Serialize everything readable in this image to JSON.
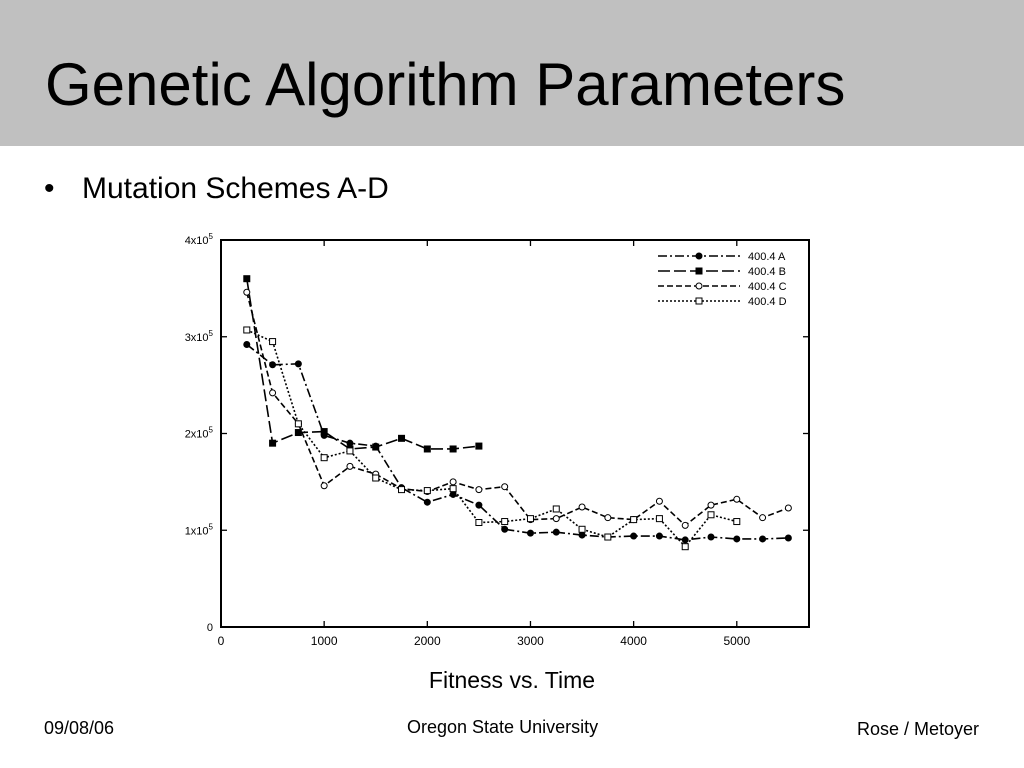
{
  "slide": {
    "title": "Genetic Algorithm Parameters",
    "bullet": "Mutation Schemes A-D",
    "caption": "Fitness vs. Time",
    "footer_left": "09/08/06",
    "footer_center": "Oregon State University",
    "footer_right": "Rose / Metoyer"
  },
  "colors": {
    "title_bar": "#c0c0c0",
    "ink": "#000000"
  },
  "chart_data": {
    "type": "line",
    "title": "",
    "xlabel": "",
    "ylabel": "",
    "xlim": [
      0,
      5700
    ],
    "ylim": [
      0,
      400000
    ],
    "x_ticks": [
      0,
      1000,
      2000,
      3000,
      4000,
      5000
    ],
    "x_tick_labels": [
      "0",
      "1000",
      "2000",
      "3000",
      "4000",
      "5000"
    ],
    "y_ticks": [
      0,
      100000,
      200000,
      300000,
      400000
    ],
    "y_tick_labels": [
      {
        "base": "0",
        "exp": ""
      },
      {
        "base": "1x10",
        "exp": "5"
      },
      {
        "base": "2x10",
        "exp": "5"
      },
      {
        "base": "3x10",
        "exp": "5"
      },
      {
        "base": "4x10",
        "exp": "5"
      }
    ],
    "grid": false,
    "legend_position": "top-right",
    "series": [
      {
        "name": "400.4 A",
        "line_style": "dash-dot",
        "marker": "filled-circle",
        "x": [
          250,
          500,
          750,
          1000,
          1250,
          1500,
          1750,
          2000,
          2250,
          2500,
          2750,
          3000,
          3250,
          3500,
          3750,
          4000,
          4250,
          4500,
          4750,
          5000,
          5250,
          5500
        ],
        "y": [
          292000,
          271000,
          272000,
          198000,
          190000,
          187000,
          144000,
          129000,
          137000,
          126000,
          101000,
          97000,
          98000,
          95000,
          93000,
          94000,
          94000,
          90000,
          93000,
          91000,
          91000,
          92000
        ]
      },
      {
        "name": "400.4 B",
        "line_style": "long-dash",
        "marker": "filled-square",
        "x": [
          250,
          500,
          750,
          1000,
          1250,
          1500,
          1750,
          2000,
          2250,
          2500
        ],
        "y": [
          360000,
          190000,
          201000,
          202000,
          184000,
          186000,
          195000,
          184000,
          184000,
          187000
        ]
      },
      {
        "name": "400.4 C",
        "line_style": "dash",
        "marker": "open-circle",
        "x": [
          250,
          500,
          750,
          1000,
          1250,
          1500,
          1750,
          2000,
          2250,
          2500,
          2750,
          3000,
          3250,
          3500,
          3750,
          4000,
          4250,
          4500,
          4750,
          5000,
          5250,
          5500
        ],
        "y": [
          346000,
          242000,
          210000,
          146000,
          166000,
          158000,
          143000,
          140000,
          150000,
          142000,
          145000,
          111000,
          112000,
          124000,
          113000,
          111000,
          130000,
          105000,
          126000,
          132000,
          113000,
          123000
        ]
      },
      {
        "name": "400.4 D",
        "line_style": "dotted",
        "marker": "open-square",
        "x": [
          250,
          500,
          750,
          1000,
          1250,
          1500,
          1750,
          2000,
          2250,
          2500,
          2750,
          3000,
          3250,
          3500,
          3750,
          4000,
          4250,
          4500,
          4750,
          5000
        ],
        "y": [
          307000,
          295000,
          210000,
          175000,
          182000,
          154000,
          142000,
          141000,
          143000,
          108000,
          109000,
          112000,
          122000,
          101000,
          93000,
          111000,
          112000,
          83000,
          116000,
          109000
        ]
      }
    ]
  }
}
